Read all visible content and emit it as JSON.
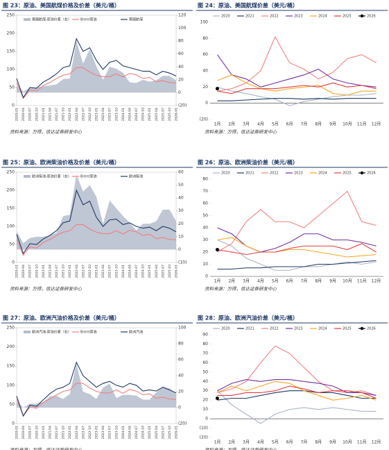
{
  "chart_data": [
    {
      "type": "combo",
      "title": "图 23：原油、美国航煤价格及价差（美元/桶）",
      "source": "资料来源：万得，信达证券研发中心",
      "categories": [
        "2020-01",
        "2020-04",
        "2020-07",
        "2020-10",
        "2021-01",
        "2021-04",
        "2021-07",
        "2021-10",
        "2022-01",
        "2022-04",
        "2022-07",
        "2022-10",
        "2023-01",
        "2023-04",
        "2023-07",
        "2023-10",
        "2024-01",
        "2024-04",
        "2024-07",
        "2024-10",
        "2025-01",
        "2025-04",
        "2025-07",
        "2025-10",
        "2026-01"
      ],
      "series": [
        {
          "name": "美国航煤-原油价差（右）",
          "color": "#b4bccc",
          "kind": "area",
          "axis": "y2",
          "values": [
            11,
            2,
            7,
            8,
            10,
            11,
            13,
            21,
            22,
            80,
            45,
            67,
            41,
            20,
            40,
            37,
            31,
            16,
            15,
            20,
            17,
            19,
            26,
            26,
            19
          ]
        },
        {
          "name": "Brent原油",
          "color": "#f08080",
          "kind": "line",
          "values": [
            64,
            20,
            43,
            40,
            55,
            64,
            75,
            84,
            88,
            105,
            105,
            93,
            84,
            80,
            80,
            88,
            79,
            89,
            85,
            75,
            78,
            66,
            69,
            64,
            63
          ]
        },
        {
          "name": "美国航煤",
          "color": "#1f3864",
          "kind": "line",
          "values": [
            75,
            22,
            50,
            48,
            65,
            75,
            88,
            105,
            110,
            185,
            150,
            160,
            125,
            100,
            120,
            125,
            110,
            105,
            100,
            95,
            95,
            85,
            95,
            90,
            82
          ]
        }
      ],
      "ylim": [
        0,
        250
      ],
      "yticks": [
        0,
        50,
        100,
        150,
        200,
        250
      ],
      "y2lim": [
        -20,
        120
      ],
      "y2ticks": [
        {
          "value": -20,
          "label": "(20)"
        },
        0,
        20,
        40,
        60,
        80,
        100,
        120
      ]
    },
    {
      "type": "line",
      "title": "图 24：原油、美国航煤价差（美元/桶）",
      "source": "资料来源：万得，信达证券研发中心",
      "categories": [
        "1月",
        "2月",
        "3月",
        "4月",
        "5月",
        "6月",
        "7月",
        "8月",
        "9月",
        "10月",
        "11月",
        "12月"
      ],
      "series": [
        {
          "name": "2020",
          "color": "#a9b4c8",
          "values": [
            20,
            15,
            12,
            8,
            5,
            -3,
            2,
            5,
            8,
            10,
            10,
            12
          ]
        },
        {
          "name": "2021",
          "color": "#1f3864",
          "values": [
            3,
            3,
            4,
            5,
            6,
            6,
            5,
            6,
            5,
            6,
            6,
            6
          ]
        },
        {
          "name": "2022",
          "color": "#f08080",
          "values": [
            15,
            18,
            25,
            40,
            82,
            50,
            42,
            30,
            38,
            55,
            60,
            50
          ]
        },
        {
          "name": "2023",
          "color": "#7030a0",
          "values": [
            60,
            35,
            30,
            20,
            25,
            30,
            35,
            42,
            30,
            25,
            22,
            20
          ]
        },
        {
          "name": "2024",
          "color": "#f5a623",
          "values": [
            28,
            35,
            25,
            18,
            15,
            18,
            20,
            22,
            12,
            10,
            15,
            15
          ]
        },
        {
          "name": "2025",
          "color": "#e03c3c",
          "values": [
            15,
            12,
            18,
            18,
            18,
            20,
            22,
            20,
            25,
            20,
            22,
            18
          ]
        },
        {
          "name": "2026",
          "color": "#000000",
          "marker": true,
          "values": [
            18,
            null,
            null,
            null,
            null,
            null,
            null,
            null,
            null,
            null,
            null,
            null
          ]
        }
      ],
      "ylim": [
        -20,
        100
      ],
      "yticks": [
        {
          "value": -20,
          "label": "(20)"
        },
        0,
        20,
        40,
        60,
        80,
        100
      ]
    },
    {
      "type": "combo",
      "title": "图 25：原油、欧洲柴油价格及价差（美元/桶）",
      "source": "资料来源：万得，信达证券研发中心",
      "categories": [
        "2020-01",
        "2020-04",
        "2020-07",
        "2020-10",
        "2021-01",
        "2021-04",
        "2021-07",
        "2021-10",
        "2022-01",
        "2022-04",
        "2022-07",
        "2022-10",
        "2023-01",
        "2023-04",
        "2023-07",
        "2023-10",
        "2024-01",
        "2024-04",
        "2024-07",
        "2024-10",
        "2025-01",
        "2025-04",
        "2025-07",
        "2025-10",
        "2026-01"
      ],
      "series": [
        {
          "name": "欧洲柴油-原油价差（右）",
          "color": "#b4bccc",
          "kind": "area",
          "axis": "y2",
          "values": [
            14,
            5,
            9,
            10,
            10,
            11,
            13,
            26,
            27,
            58,
            45,
            50,
            41,
            20,
            38,
            32,
            26,
            21,
            15,
            20,
            20,
            22,
            31,
            31,
            22
          ]
        },
        {
          "name": "Brent原油",
          "color": "#f08080",
          "kind": "line",
          "values": [
            64,
            20,
            43,
            40,
            55,
            64,
            75,
            84,
            88,
            105,
            105,
            93,
            84,
            80,
            80,
            88,
            79,
            89,
            85,
            75,
            78,
            66,
            69,
            64,
            63
          ]
        },
        {
          "name": "欧洲柴油",
          "color": "#1f3864",
          "kind": "line",
          "values": [
            78,
            25,
            52,
            50,
            65,
            75,
            88,
            110,
            115,
            200,
            160,
            170,
            125,
            100,
            118,
            120,
            105,
            110,
            100,
            95,
            98,
            88,
            100,
            95,
            85
          ]
        }
      ],
      "ylim": [
        0,
        250
      ],
      "yticks": [
        0,
        50,
        100,
        150,
        200,
        250
      ],
      "y2lim": [
        -10,
        60
      ],
      "y2ticks": [
        {
          "value": -10,
          "label": "(10)"
        },
        0,
        10,
        20,
        30,
        40,
        50,
        60
      ]
    },
    {
      "type": "line",
      "title": "图 26：原油、欧洲柴油价差（美元/桶）",
      "source": "资料来源：万得，信达证券研发中心",
      "categories": [
        "1月",
        "2月",
        "3月",
        "4月",
        "5月",
        "6月",
        "7月",
        "8月",
        "9月",
        "10月",
        "11月",
        "12月"
      ],
      "series": [
        {
          "name": "2020",
          "color": "#a9b4c8",
          "values": [
            30,
            25,
            15,
            10,
            5,
            5,
            8,
            8,
            10,
            12,
            10,
            12
          ]
        },
        {
          "name": "2021",
          "color": "#1f3864",
          "values": [
            6,
            6,
            7,
            7,
            8,
            8,
            8,
            10,
            10,
            11,
            12,
            13
          ]
        },
        {
          "name": "2022",
          "color": "#f08080",
          "values": [
            20,
            27,
            45,
            55,
            45,
            45,
            40,
            50,
            60,
            70,
            45,
            42
          ]
        },
        {
          "name": "2023",
          "color": "#7030a0",
          "values": [
            40,
            35,
            25,
            20,
            23,
            28,
            35,
            35,
            30,
            30,
            28,
            25
          ]
        },
        {
          "name": "2024",
          "color": "#f5a623",
          "values": [
            30,
            32,
            25,
            20,
            20,
            22,
            22,
            20,
            18,
            16,
            17,
            18
          ]
        },
        {
          "name": "2025",
          "color": "#e03c3c",
          "values": [
            22,
            20,
            18,
            20,
            20,
            23,
            25,
            25,
            25,
            22,
            27,
            20
          ]
        },
        {
          "name": "2026",
          "color": "#000000",
          "marker": true,
          "values": [
            22,
            null,
            null,
            null,
            null,
            null,
            null,
            null,
            null,
            null,
            null,
            null
          ]
        }
      ],
      "ylim": [
        0,
        80
      ],
      "yticks": [
        0,
        10,
        20,
        30,
        40,
        50,
        60,
        70,
        80
      ]
    },
    {
      "type": "combo",
      "title": "图 27：原油、欧洲汽油价格及价差（美元/桶）",
      "source": "资料来源：万得，信达证券研发中心",
      "categories": [
        "2020-01",
        "2020-04",
        "2020-07",
        "2020-10",
        "2021-01",
        "2021-04",
        "2021-07",
        "2021-10",
        "2022-01",
        "2022-04",
        "2022-07",
        "2022-10",
        "2023-01",
        "2023-04",
        "2023-07",
        "2023-10",
        "2024-01",
        "2024-04",
        "2024-07",
        "2024-10",
        "2025-01",
        "2025-04",
        "2025-07",
        "2025-10",
        "2026-01"
      ],
      "series": [
        {
          "name": "欧洲汽油-原油价差（右）",
          "color": "#b4bccc",
          "kind": "area",
          "axis": "y2",
          "values": [
            8,
            0,
            5,
            5,
            7,
            14,
            15,
            11,
            17,
            55,
            20,
            17,
            11,
            25,
            30,
            12,
            16,
            16,
            15,
            10,
            10,
            19,
            26,
            24,
            17
          ]
        },
        {
          "name": "Brent原油",
          "color": "#f08080",
          "kind": "line",
          "values": [
            64,
            20,
            43,
            40,
            55,
            64,
            75,
            84,
            88,
            105,
            105,
            93,
            84,
            80,
            80,
            88,
            79,
            89,
            85,
            75,
            78,
            66,
            69,
            64,
            63
          ]
        },
        {
          "name": "欧洲汽油",
          "color": "#1f3864",
          "kind": "line",
          "values": [
            72,
            20,
            48,
            45,
            62,
            78,
            90,
            95,
            105,
            160,
            125,
            110,
            95,
            105,
            110,
            100,
            95,
            105,
            100,
            85,
            88,
            85,
            95,
            88,
            80
          ]
        }
      ],
      "ylim": [
        0,
        250
      ],
      "yticks": [
        0,
        50,
        100,
        150,
        200,
        250
      ],
      "y2lim": [
        -20,
        100
      ],
      "y2ticks": [
        {
          "value": -20,
          "label": "(20)"
        },
        0,
        20,
        40,
        60,
        80,
        100
      ]
    },
    {
      "type": "line",
      "title": "图 28：原油、欧洲汽油价差（美元/桶）",
      "source": "资料来源：万得，信达证券研发中心",
      "categories": [
        "1月",
        "2月",
        "3月",
        "4月",
        "5月",
        "6月",
        "7月",
        "8月",
        "9月",
        "10月",
        "11月",
        "12月"
      ],
      "series": [
        {
          "name": "2020",
          "color": "#a9b4c8",
          "values": [
            30,
            15,
            5,
            -5,
            5,
            10,
            12,
            10,
            12,
            10,
            8,
            8
          ]
        },
        {
          "name": "2021",
          "color": "#1f3864",
          "values": [
            20,
            22,
            22,
            25,
            28,
            30,
            30,
            28,
            28,
            25,
            22,
            22
          ]
        },
        {
          "name": "2022",
          "color": "#f08080",
          "values": [
            28,
            32,
            40,
            60,
            78,
            70,
            55,
            40,
            30,
            28,
            30,
            25
          ]
        },
        {
          "name": "2023",
          "color": "#7030a0",
          "values": [
            30,
            38,
            42,
            40,
            42,
            42,
            40,
            38,
            35,
            28,
            28,
            25
          ]
        },
        {
          "name": "2024",
          "color": "#f5a623",
          "values": [
            28,
            35,
            30,
            35,
            40,
            38,
            30,
            25,
            20,
            22,
            25,
            20
          ]
        },
        {
          "name": "2025",
          "color": "#e03c3c",
          "values": [
            25,
            25,
            28,
            28,
            30,
            35,
            32,
            28,
            30,
            30,
            28,
            22
          ]
        },
        {
          "name": "2026",
          "color": "#000000",
          "marker": true,
          "values": [
            22,
            null,
            null,
            null,
            null,
            null,
            null,
            null,
            null,
            null,
            null,
            null
          ]
        }
      ],
      "ylim": [
        -20,
        90
      ],
      "yticks": [
        {
          "value": -20,
          "label": "(20)"
        },
        {
          "value": -10,
          "label": "(10)"
        },
        0,
        10,
        20,
        30,
        40,
        50,
        60,
        70,
        80,
        90
      ]
    }
  ]
}
